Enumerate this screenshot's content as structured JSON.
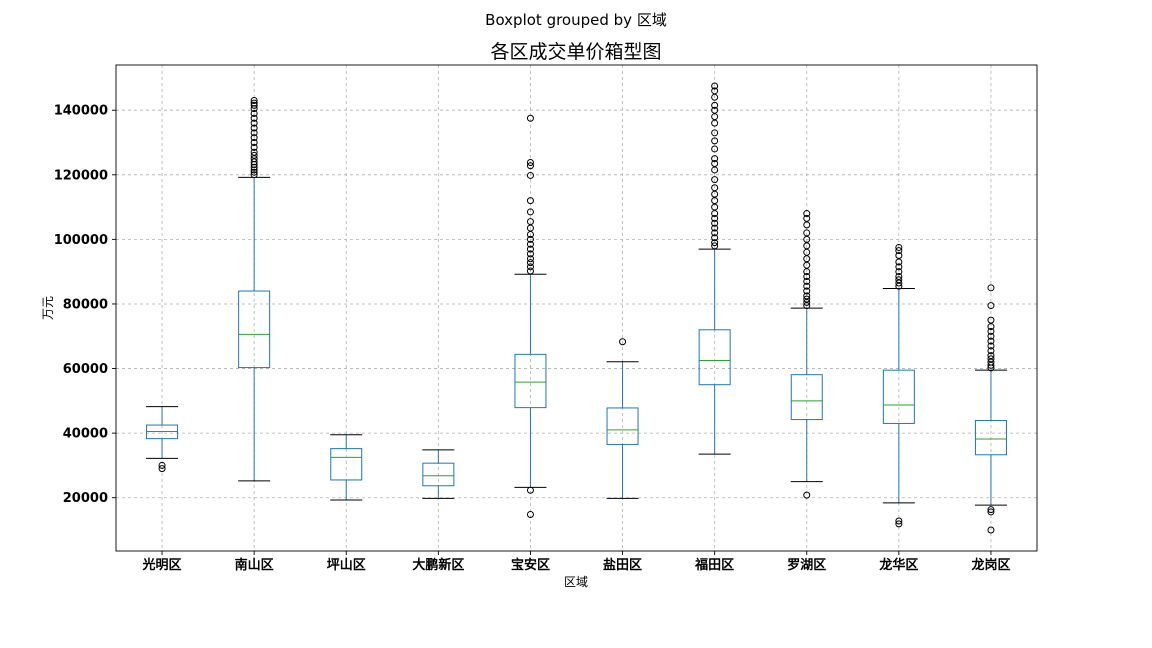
{
  "chart_data": {
    "type": "boxplot",
    "suptitle": "Boxplot grouped by 区域",
    "title": "各区成交单价箱型图",
    "xlabel": "区域",
    "ylabel": "万元",
    "ylim": [
      3500,
      154000
    ],
    "yticks": [
      20000,
      40000,
      60000,
      80000,
      100000,
      120000,
      140000
    ],
    "grid": true,
    "categories": [
      "光明区",
      "南山区",
      "坪山区",
      "大鹏新区",
      "宝安区",
      "盐田区",
      "福田区",
      "罗湖区",
      "龙华区",
      "龙岗区"
    ],
    "boxes": [
      {
        "whislo": 32200,
        "q1": 38300,
        "med": 40500,
        "q3": 42500,
        "whishi": 48200,
        "fliers": [
          29000,
          30000
        ]
      },
      {
        "whislo": 25200,
        "q1": 60300,
        "med": 70600,
        "q3": 84000,
        "whishi": 119200,
        "fliers": [
          120000,
          120800,
          121500,
          122300,
          123200,
          124000,
          125000,
          126000,
          127000,
          128500,
          130000,
          131500,
          133000,
          134500,
          136000,
          137500,
          139000,
          140500,
          141500,
          142200,
          143000
        ]
      },
      {
        "whislo": 19300,
        "q1": 25500,
        "med": 32500,
        "q3": 35200,
        "whishi": 39500,
        "fliers": []
      },
      {
        "whislo": 19800,
        "q1": 23700,
        "med": 26800,
        "q3": 30700,
        "whishi": 34800,
        "fliers": []
      },
      {
        "whislo": 23200,
        "q1": 47900,
        "med": 55800,
        "q3": 64400,
        "whishi": 89200,
        "fliers": [
          14800,
          22300,
          90200,
          91500,
          92800,
          94000,
          95500,
          97000,
          98500,
          100000,
          101500,
          103500,
          105500,
          108500,
          112000,
          119800,
          122800,
          123800,
          137500
        ]
      },
      {
        "whislo": 19800,
        "q1": 36500,
        "med": 41000,
        "q3": 47800,
        "whishi": 62100,
        "fliers": [
          68300
        ]
      },
      {
        "whislo": 33500,
        "q1": 55000,
        "med": 62500,
        "q3": 72000,
        "whishi": 97000,
        "fliers": [
          98000,
          99000,
          100500,
          102000,
          103500,
          105000,
          106500,
          108000,
          110000,
          112000,
          114000,
          116000,
          118500,
          121500,
          123500,
          125000,
          128000,
          130500,
          133000,
          136000,
          138000,
          140000,
          141500,
          144000,
          146000,
          147500
        ]
      },
      {
        "whislo": 25000,
        "q1": 44200,
        "med": 50000,
        "q3": 58100,
        "whishi": 78700,
        "fliers": [
          20800,
          79500,
          80500,
          81500,
          82500,
          84000,
          85500,
          87000,
          88500,
          90000,
          92000,
          94000,
          96000,
          98000,
          100000,
          102000,
          104500,
          106500,
          108000
        ]
      },
      {
        "whislo": 18400,
        "q1": 43000,
        "med": 48700,
        "q3": 59500,
        "whishi": 84800,
        "fliers": [
          11900,
          12800,
          85500,
          86500,
          87500,
          88500,
          90000,
          91500,
          93000,
          95000,
          96500,
          97500
        ]
      },
      {
        "whislo": 17700,
        "q1": 33300,
        "med": 38200,
        "q3": 43900,
        "whishi": 59500,
        "fliers": [
          10000,
          15600,
          16300,
          60200,
          61000,
          62000,
          63000,
          64000,
          65500,
          67000,
          68500,
          70000,
          71500,
          73000,
          75000,
          79500,
          85000
        ]
      }
    ]
  }
}
